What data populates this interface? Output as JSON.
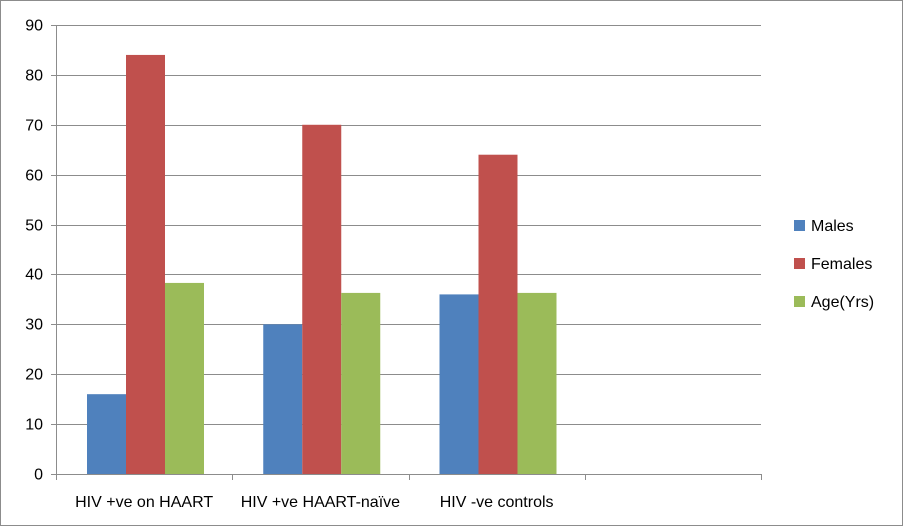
{
  "chart_data": {
    "type": "bar",
    "categories": [
      "HIV +ve on HAART",
      "HIV +ve HAART-naïve",
      "HIV -ve controls",
      ""
    ],
    "series": [
      {
        "name": "Males",
        "color": "#4f81bd",
        "values": [
          16,
          30,
          36,
          null
        ]
      },
      {
        "name": "Females",
        "color": "#c0504d",
        "values": [
          84,
          70,
          64,
          null
        ]
      },
      {
        "name": "Age(Yrs)",
        "color": "#9bbb59",
        "values": [
          38.3,
          36.3,
          36.3,
          null
        ]
      }
    ],
    "ylim": [
      0,
      90
    ],
    "yticks": [
      0,
      10,
      20,
      30,
      40,
      50,
      60,
      70,
      80,
      90
    ],
    "grid": true,
    "legend_position": "right"
  }
}
